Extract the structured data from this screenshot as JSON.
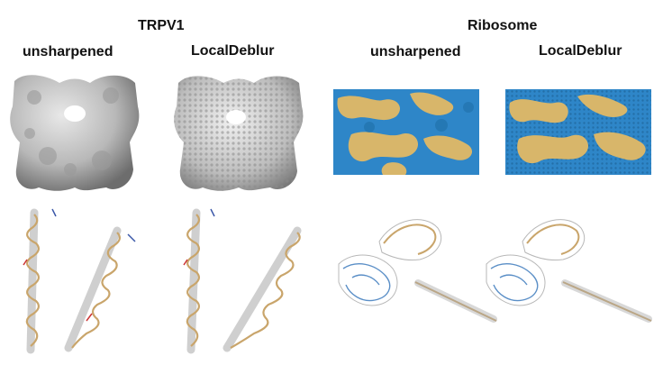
{
  "groups": [
    {
      "title": "TRPV1",
      "panels": [
        {
          "label": "unsharpened",
          "map_style": "smooth-gray",
          "model_style": "helices-gray-mesh"
        },
        {
          "label": "LocalDeblur",
          "map_style": "detailed-gray",
          "model_style": "helices-gray-mesh"
        }
      ]
    },
    {
      "title": "Ribosome",
      "panels": [
        {
          "label": "unsharpened",
          "map_style": "blue-tan-density",
          "model_style": "rna-blue-mesh"
        },
        {
          "label": "LocalDeblur",
          "map_style": "blue-tan-density-detailed",
          "model_style": "rna-blue-mesh"
        }
      ]
    }
  ],
  "colors": {
    "background": "#ffffff",
    "map_gray": "#b9b9b9",
    "rna_blue": "#2e86c8",
    "protein_tan": "#d8b66a",
    "stick_tan": "#c9a56b",
    "mesh_gray": "#9a9a9a",
    "mesh_blue": "#5b8fc7"
  }
}
